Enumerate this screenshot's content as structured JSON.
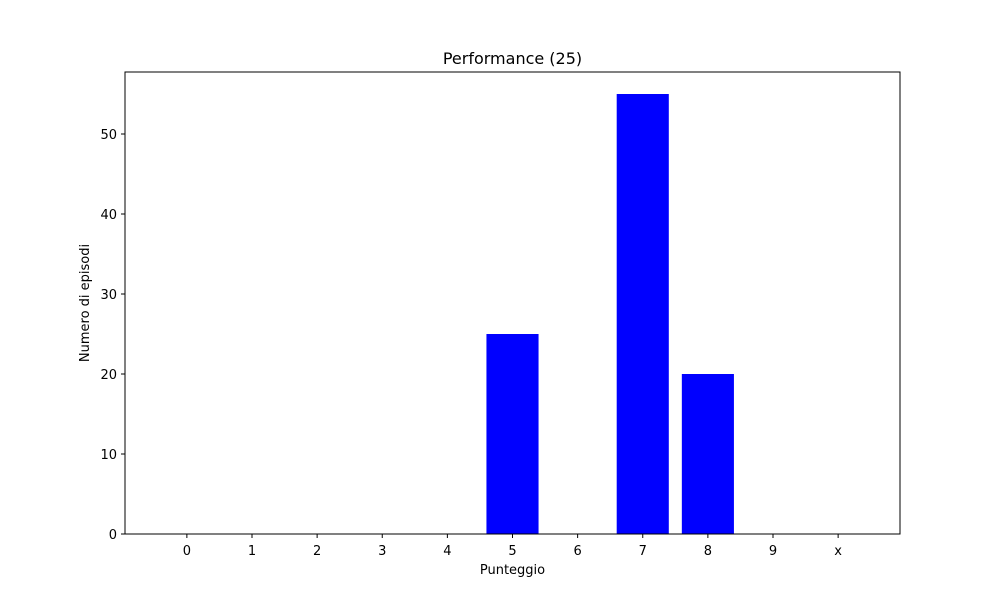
{
  "chart_data": {
    "type": "bar",
    "title": "Performance (25)",
    "xlabel": "Punteggio",
    "ylabel": "Numero di episodi",
    "categories": [
      "0",
      "1",
      "2",
      "3",
      "4",
      "5",
      "6",
      "7",
      "8",
      "9",
      "x"
    ],
    "values": [
      0,
      0,
      0,
      0,
      0,
      25,
      0,
      55,
      20,
      0,
      0
    ],
    "ylim": [
      0,
      57.75
    ],
    "yticks": [
      0,
      10,
      20,
      30,
      40,
      50
    ],
    "bar_color": "#0000ff",
    "grid": false,
    "legend": "none"
  }
}
